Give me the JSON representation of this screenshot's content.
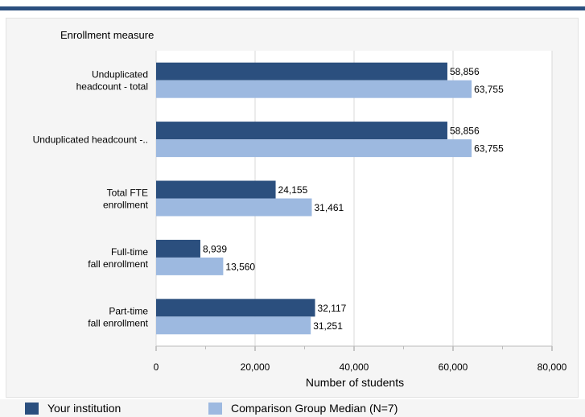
{
  "chart_data": {
    "type": "bar",
    "orientation": "horizontal",
    "category_axis_title": "Enrollment measure",
    "xlabel": "Number of students",
    "xlim": [
      0,
      80000
    ],
    "xticks": [
      0,
      20000,
      40000,
      60000,
      80000
    ],
    "xtick_labels": [
      "0",
      "20,000",
      "40,000",
      "60,000",
      "80,000"
    ],
    "grid": true,
    "legend_position": "bottom",
    "categories": [
      [
        "Unduplicated",
        "headcount - total"
      ],
      [
        "Unduplicated headcount -.."
      ],
      [
        "Total FTE",
        "enrollment"
      ],
      [
        "Full-time",
        "fall enrollment"
      ],
      [
        "Part-time",
        "fall enrollment"
      ]
    ],
    "series": [
      {
        "name": "Your institution",
        "color": "#2b4f7e",
        "values": [
          58856,
          58856,
          24155,
          8939,
          32117
        ],
        "labels": [
          "58,856",
          "58,856",
          "24,155",
          "8,939",
          "32,117"
        ]
      },
      {
        "name": "Comparison Group Median (N=7)",
        "color": "#9db9e0",
        "values": [
          63755,
          63755,
          31461,
          13560,
          31251
        ],
        "labels": [
          "63,755",
          "63,755",
          "31,461",
          "13,560",
          "31,251"
        ]
      }
    ]
  }
}
